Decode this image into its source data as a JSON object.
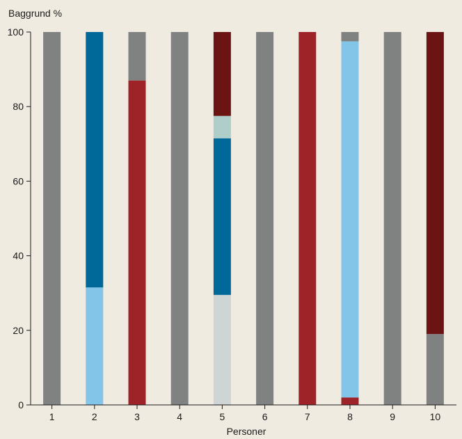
{
  "chart_data": {
    "type": "bar",
    "stacked": true,
    "title": "",
    "ylabel": "Baggrund %",
    "xlabel": "Personer",
    "ylim": [
      0,
      100
    ],
    "yticks": [
      0,
      20,
      40,
      60,
      80,
      100
    ],
    "categories": [
      "1",
      "2",
      "3",
      "4",
      "5",
      "6",
      "7",
      "8",
      "9",
      "10"
    ],
    "series": [
      {
        "color": "#9e2328",
        "values": [
          0,
          0,
          87,
          0,
          0,
          0,
          100,
          2,
          0,
          0
        ]
      },
      {
        "color": "#6b1413",
        "values": [
          0,
          0,
          0,
          0,
          22.5,
          0,
          0,
          0,
          0,
          81
        ]
      },
      {
        "color": "#00699a",
        "values": [
          0,
          68.5,
          0,
          0,
          42,
          0,
          0,
          0,
          0,
          0
        ]
      },
      {
        "color": "#83c5e9",
        "values": [
          0,
          31.5,
          0,
          0,
          0,
          0,
          0,
          95.5,
          0,
          0
        ]
      },
      {
        "color": "#aecfc9",
        "values": [
          0,
          0,
          0,
          0,
          6,
          0,
          0,
          0,
          0,
          0
        ]
      },
      {
        "color": "#cfd4d4",
        "values": [
          0,
          0,
          0,
          0,
          29.5,
          0,
          0,
          0,
          0,
          0
        ]
      },
      {
        "color": "#7f8281",
        "values": [
          100,
          0,
          13,
          100,
          0,
          100,
          0,
          2.5,
          100,
          19
        ]
      }
    ],
    "stack_order": [
      [
        "#7f8281"
      ],
      [
        "#83c5e9",
        "#00699a"
      ],
      [
        "#9e2328",
        "#7f8281"
      ],
      [
        "#7f8281"
      ],
      [
        "#cfd4d4",
        "#00699a",
        "#aecfc9",
        "#6b1413"
      ],
      [
        "#7f8281"
      ],
      [
        "#9e2328"
      ],
      [
        "#9e2328",
        "#83c5e9",
        "#7f8281"
      ],
      [
        "#7f8281"
      ],
      [
        "#7f8281",
        "#6b1413"
      ]
    ],
    "grid": false,
    "legend": "none"
  }
}
